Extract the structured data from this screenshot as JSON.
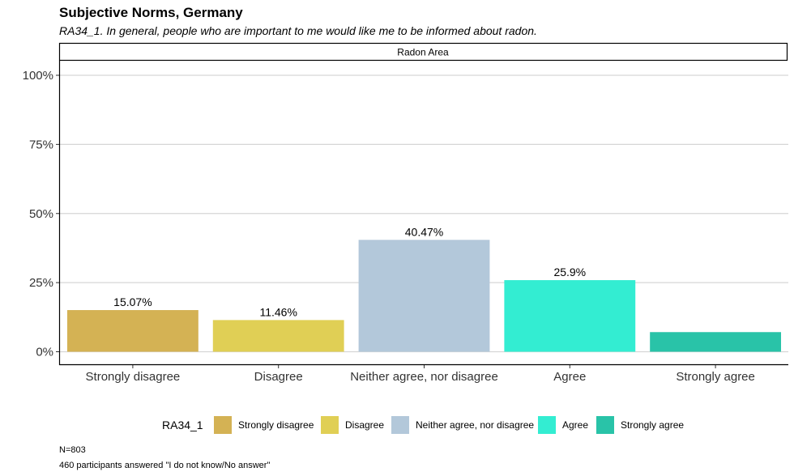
{
  "chart_data": {
    "type": "bar",
    "title": "Subjective Norms, Germany",
    "subtitle": "RA34_1. In general, people who are important to me would like me to be informed about radon.",
    "facet_label": "Radon Area",
    "categories": [
      "Strongly disagree",
      "Disagree",
      "Neither agree, nor disagree",
      "Agree",
      "Strongly agree"
    ],
    "values": [
      15.07,
      11.46,
      40.47,
      25.9,
      7.1
    ],
    "data_labels": [
      "15.07%",
      "11.46%",
      "40.47%",
      "25.9%",
      ""
    ],
    "colors": [
      "#D4B254",
      "#E0CF55",
      "#B3C8DA",
      "#33EDD2",
      "#29C3A8"
    ],
    "ylim": [
      0,
      100
    ],
    "y_ticks": [
      {
        "value": 0,
        "label": "0%"
      },
      {
        "value": 25,
        "label": "25%"
      },
      {
        "value": 50,
        "label": "50%"
      },
      {
        "value": 75,
        "label": "75%"
      },
      {
        "value": 100,
        "label": "100%"
      }
    ],
    "legend": {
      "title": "RA34_1",
      "position": "bottom",
      "entries": [
        "Strongly disagree",
        "Disagree",
        "Neither agree, nor disagree",
        "Agree",
        "Strongly agree"
      ]
    },
    "captions": [
      "N=803",
      "460 participants answered \"I do not know/No answer\""
    ]
  }
}
